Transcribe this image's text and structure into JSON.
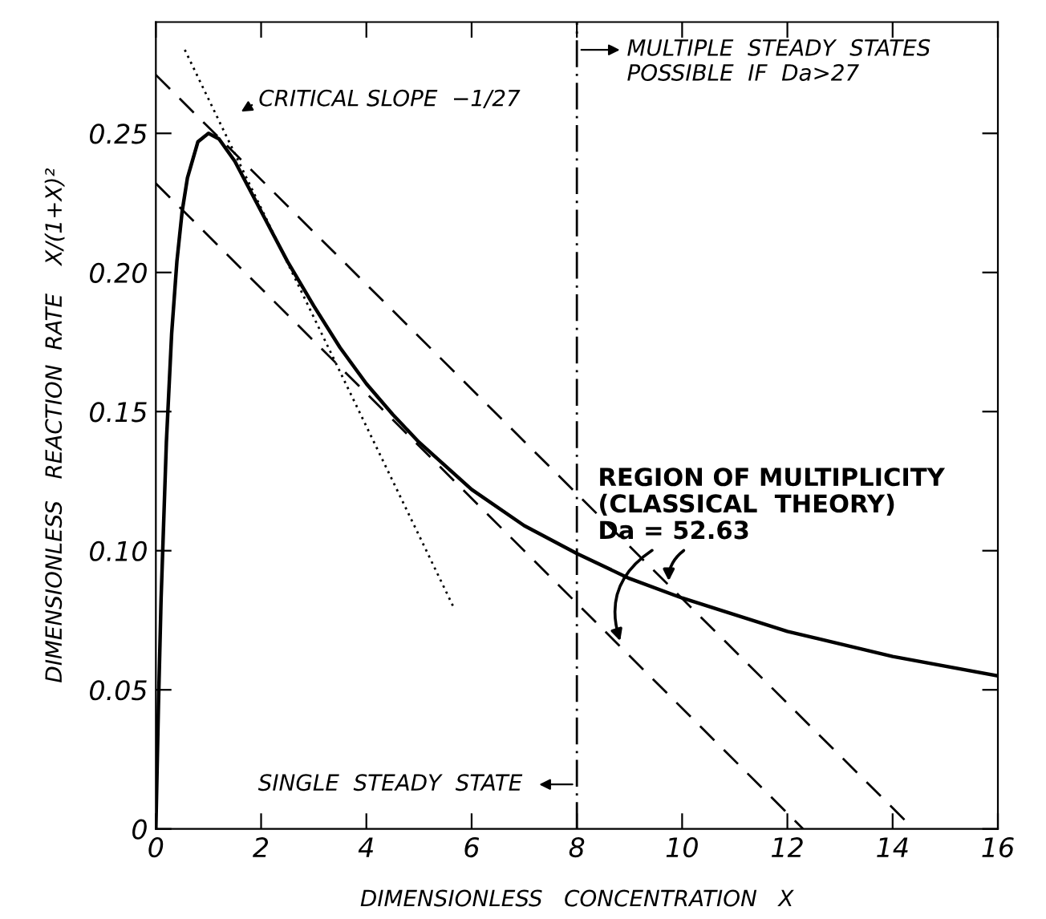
{
  "chart_data": {
    "type": "line",
    "xlabel": "DIMENSIONLESS   CONCENTRATION   X",
    "ylabel": "DIMENSIONLESS   REACTION  RATE    X/(1+X)²",
    "xlim": [
      0,
      16
    ],
    "ylim": [
      0,
      0.29
    ],
    "xticks": [
      0,
      2,
      4,
      6,
      8,
      10,
      12,
      14,
      16
    ],
    "yticks": [
      {
        "value": 0,
        "label": "0"
      },
      {
        "value": 0.05,
        "label": "0.05"
      },
      {
        "value": 0.1,
        "label": "0.10"
      },
      {
        "value": 0.15,
        "label": "0.15"
      },
      {
        "value": 0.2,
        "label": "0.20"
      },
      {
        "value": 0.25,
        "label": "0.25"
      }
    ],
    "grid": false,
    "legend": false,
    "marker": "none",
    "series": [
      {
        "color": "#000000",
        "line_style": "solid",
        "x": [
          0,
          0.05,
          0.1,
          0.2,
          0.3,
          0.4,
          0.5,
          0.6,
          0.8,
          1,
          1.2,
          1.5,
          1.75,
          2,
          2.25,
          2.5,
          3,
          3.5,
          4,
          4.5,
          5,
          6,
          7,
          8,
          9,
          10,
          12,
          14,
          16
        ],
        "values": [
          0,
          0.045,
          0.083,
          0.139,
          0.178,
          0.204,
          0.222,
          0.234,
          0.247,
          0.25,
          0.248,
          0.24,
          0.231,
          0.222,
          0.213,
          0.204,
          0.188,
          0.173,
          0.16,
          0.149,
          0.139,
          0.122,
          0.109,
          0.099,
          0.09,
          0.083,
          0.071,
          0.062,
          0.055
        ]
      },
      {
        "color": "#000000",
        "line_style": "dashed",
        "x": [
          0,
          14.4
        ],
        "values": [
          0.271,
          0
        ]
      },
      {
        "color": "#000000",
        "line_style": "dashed",
        "x": [
          0,
          12.3
        ],
        "values": [
          0.232,
          0
        ]
      },
      {
        "color": "#000000",
        "line_style": "dotted",
        "x": [
          0.55,
          5.65
        ],
        "values": [
          0.28,
          0.08
        ]
      }
    ],
    "ref_lines": [
      {
        "axis": "x",
        "value": 8,
        "color": "#000000",
        "line_style": "dashdot"
      }
    ],
    "annotations": [
      "CRITICAL SLOPE  −1/27",
      "MULTIPLE  STEADY  STATES\nPOSSIBLE  IF  Da>27",
      "SINGLE  STEADY  STATE",
      {
        "text": "REGION OF MULTIPLICITY\n(CLASSICAL  THEORY)\nDa = 52.63",
        "x": 8.85,
        "y": 0.066
      }
    ]
  }
}
